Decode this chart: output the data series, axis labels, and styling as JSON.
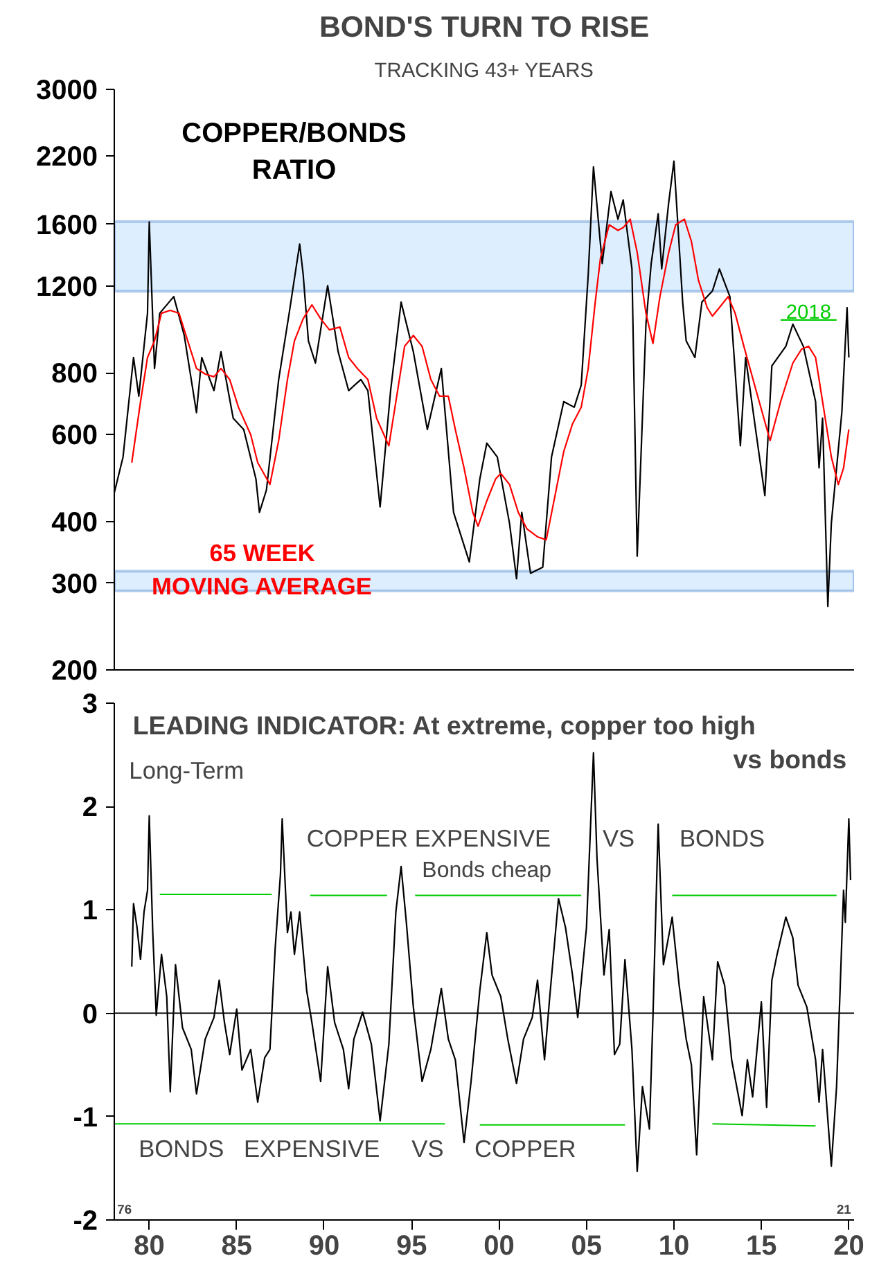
{
  "chart_data": [
    {
      "type": "line",
      "title": "BOND'S TURN TO RISE",
      "subtitle": "TRACKING 43+ YEARS",
      "log": "y",
      "tick_labels": "y",
      "xlim": [
        1978,
        2020.3
      ],
      "ylim": [
        200,
        3000
      ],
      "yticks": [
        200,
        300,
        400,
        600,
        800,
        1200,
        1600,
        2200,
        3000
      ],
      "bands": [
        {
          "axis": "y",
          "from": 1170,
          "to": 1620,
          "color": "#ddeeff"
        },
        {
          "axis": "y",
          "from": 289,
          "to": 317,
          "color": "#ddeeff"
        }
      ],
      "series": [
        {
          "name": "COPPER/BONDS\nRATIO",
          "color": "#000000",
          "x": [
            1978.0,
            1978.5,
            1979.1,
            1979.4,
            1979.9,
            1980.0,
            1980.3,
            1980.6,
            1981.4,
            1982.0,
            1982.7,
            1983.0,
            1983.7,
            1984.1,
            1984.8,
            1985.4,
            1986.1,
            1986.3,
            1986.7,
            1987.4,
            1988.0,
            1988.6,
            1988.8,
            1989.1,
            1989.5,
            1990.2,
            1990.8,
            1991.4,
            1992.1,
            1992.5,
            1993.2,
            1993.8,
            1994.4,
            1995.1,
            1995.9,
            1996.7,
            1997.4,
            1998.3,
            1998.9,
            1999.3,
            1999.9,
            2000.6,
            2001.0,
            2001.3,
            2001.8,
            2002.5,
            2003.0,
            2003.7,
            2004.3,
            2004.7,
            2005.1,
            2005.4,
            2005.9,
            2006.4,
            2006.8,
            2007.1,
            2007.6,
            2007.9,
            2008.4,
            2008.7,
            2009.1,
            2009.3,
            2009.7,
            2010.0,
            2010.5,
            2010.7,
            2011.2,
            2011.6,
            2012.2,
            2012.6,
            2013.2,
            2013.8,
            2014.1,
            2014.8,
            2015.2,
            2015.6,
            2016.4,
            2016.8,
            2017.4,
            2018.1,
            2018.3,
            2018.5,
            2018.8,
            2019.0,
            2019.6,
            2019.9,
            2020.0
          ],
          "values": [
            457,
            540,
            859,
            717,
            1056,
            1616,
            816,
            1056,
            1141,
            952,
            664,
            859,
            736,
            882,
            647,
            614,
            487,
            417,
            463,
            775,
            1056,
            1458,
            1265,
            928,
            837,
            1201,
            882,
            736,
            775,
            736,
            428,
            736,
            1112,
            882,
            614,
            816,
            417,
            331,
            487,
            576,
            540,
            396,
            306,
            417,
            314,
            323,
            540,
            699,
            681,
            755,
            1265,
            2090,
            1331,
            1862,
            1637,
            1791,
            1298,
            340,
            1003,
            1331,
            1679,
            1298,
            1768,
            2146,
            1112,
            928,
            859,
            1112,
            1171,
            1298,
            1141,
            569,
            859,
            569,
            451,
            826,
            905,
            1003,
            905,
            699,
            513,
            647,
            269,
            396,
            664,
            1084,
            859
          ]
        },
        {
          "name": "65 WEEK\nMOVING AVERAGE",
          "color": "#ff0000",
          "x": [
            1979.0,
            1979.5,
            1979.9,
            1980.3,
            1980.7,
            1981.2,
            1981.7,
            1982.2,
            1982.7,
            1983.2,
            1983.7,
            1984.1,
            1984.6,
            1985.1,
            1985.8,
            1986.2,
            1986.9,
            1987.4,
            1987.9,
            1988.3,
            1988.8,
            1989.3,
            1989.8,
            1990.3,
            1990.9,
            1991.4,
            1991.9,
            1992.5,
            1993.0,
            1993.7,
            1994.2,
            1994.6,
            1995.1,
            1995.6,
            1996.1,
            1996.6,
            1997.1,
            1997.5,
            1998.0,
            1998.5,
            1998.8,
            1999.3,
            1999.8,
            2000.1,
            2000.6,
            2001.1,
            2001.6,
            2002.2,
            2002.7,
            2003.2,
            2003.7,
            2004.2,
            2004.7,
            2005.1,
            2005.5,
            2005.8,
            2006.3,
            2006.8,
            2007.1,
            2007.5,
            2007.9,
            2008.4,
            2008.8,
            2009.2,
            2009.7,
            2010.1,
            2010.6,
            2011.0,
            2011.4,
            2011.9,
            2012.2,
            2012.6,
            2013.1,
            2013.5,
            2014.0,
            2014.7,
            2015.5,
            2016.1,
            2016.8,
            2017.3,
            2017.7,
            2018.1,
            2018.5,
            2019.0,
            2019.4,
            2019.7,
            2020.0
          ],
          "values": [
            526,
            699,
            859,
            928,
            1056,
            1070,
            1056,
            928,
            816,
            795,
            785,
            816,
            775,
            681,
            599,
            526,
            475,
            583,
            775,
            928,
            1029,
            1098,
            1029,
            977,
            990,
            859,
            816,
            775,
            647,
            569,
            736,
            905,
            952,
            905,
            775,
            717,
            717,
            614,
            513,
            417,
            391,
            440,
            487,
            500,
            475,
            417,
            386,
            372,
            367,
            451,
            554,
            630,
            681,
            816,
            1112,
            1366,
            1595,
            1554,
            1574,
            1637,
            1402,
            1056,
            917,
            1141,
            1402,
            1595,
            1637,
            1476,
            1232,
            1084,
            1042,
            1084,
            1141,
            1056,
            905,
            736,
            583,
            699,
            837,
            893,
            905,
            859,
            699,
            540,
            475,
            513,
            614
          ]
        },
        {
          "name": "2018",
          "color": "#00cc00",
          "x": [
            2016.1,
            2019.3
          ],
          "values": [
            1023,
            1023
          ]
        }
      ]
    },
    {
      "type": "line",
      "title": "LEADING INDICATOR: At extreme, copper too high\nvs bonds",
      "xlim": [
        1978,
        2020.3
      ],
      "ylim": [
        -2,
        3
      ],
      "yticks": [
        -2,
        -1,
        0,
        1,
        2,
        3
      ],
      "xticks": [
        {
          "value": 1980,
          "label": "80"
        },
        {
          "value": 1985,
          "label": "85"
        },
        {
          "value": 1990,
          "label": "90"
        },
        {
          "value": 1995,
          "label": "95"
        },
        {
          "value": 2000,
          "label": "00"
        },
        {
          "value": 2005,
          "label": "05"
        },
        {
          "value": 2010,
          "label": "10"
        },
        {
          "value": 2015,
          "label": "15"
        },
        {
          "value": 2020,
          "label": "20"
        }
      ],
      "ref_lines": [
        {
          "axis": "y",
          "value": 0,
          "color": "#000000"
        }
      ],
      "annotations": [
        "Long-Term",
        "COPPER EXPENSIVE",
        "VS",
        "BONDS",
        "Bonds cheap",
        "BONDS",
        "EXPENSIVE",
        "VS",
        "COPPER",
        "76",
        "21"
      ],
      "series": [
        {
          "color": "#000000",
          "x": [
            1979.0,
            1979.1,
            1979.3,
            1979.5,
            1979.7,
            1979.9,
            1980.0,
            1980.2,
            1980.4,
            1980.7,
            1981.0,
            1981.2,
            1981.5,
            1981.9,
            1982.4,
            1982.7,
            1983.2,
            1983.7,
            1984.0,
            1984.3,
            1984.6,
            1985.0,
            1985.3,
            1985.8,
            1986.2,
            1986.6,
            1986.9,
            1987.2,
            1987.5,
            1987.6,
            1987.9,
            1988.1,
            1988.3,
            1988.6,
            1989.0,
            1989.3,
            1989.8,
            1990.2,
            1990.6,
            1991.1,
            1991.4,
            1991.7,
            1992.2,
            1992.7,
            1993.2,
            1993.7,
            1994.1,
            1994.4,
            1994.7,
            1995.1,
            1995.6,
            1996.1,
            1996.7,
            1997.1,
            1997.5,
            1998.0,
            1998.4,
            1998.9,
            1999.3,
            1999.6,
            2000.1,
            2000.5,
            2001.0,
            2001.4,
            2001.9,
            2002.2,
            2002.6,
            2002.9,
            2003.4,
            2003.8,
            2004.2,
            2004.5,
            2005.0,
            2005.4,
            2005.6,
            2006.0,
            2006.3,
            2006.6,
            2006.9,
            2007.2,
            2007.6,
            2007.9,
            2008.2,
            2008.6,
            2008.8,
            2009.1,
            2009.4,
            2009.9,
            2010.3,
            2010.7,
            2011.0,
            2011.3,
            2011.7,
            2012.2,
            2012.5,
            2012.9,
            2013.3,
            2013.9,
            2014.2,
            2014.5,
            2015.0,
            2015.3,
            2015.6,
            2015.9,
            2016.4,
            2016.8,
            2017.1,
            2017.6,
            2018.1,
            2018.3,
            2018.5,
            2019.0,
            2019.3,
            2019.5,
            2019.7,
            2019.8,
            2020.0,
            2020.1
          ],
          "values": [
            0.45,
            1.06,
            0.83,
            0.52,
            0.98,
            1.19,
            1.91,
            0.78,
            -0.02,
            0.57,
            0.16,
            -0.76,
            0.47,
            -0.14,
            -0.35,
            -0.78,
            -0.25,
            -0.04,
            0.32,
            -0.09,
            -0.4,
            0.04,
            -0.55,
            -0.35,
            -0.86,
            -0.43,
            -0.35,
            0.63,
            1.34,
            1.88,
            0.78,
            0.98,
            0.57,
            0.98,
            0.22,
            -0.09,
            -0.66,
            0.45,
            -0.09,
            -0.35,
            -0.73,
            -0.25,
            0.01,
            -0.3,
            -1.04,
            -0.3,
            0.98,
            1.42,
            0.88,
            0.06,
            -0.66,
            -0.35,
            0.24,
            -0.25,
            -0.45,
            -1.25,
            -0.66,
            0.22,
            0.78,
            0.37,
            0.16,
            -0.25,
            -0.68,
            -0.25,
            -0.04,
            0.32,
            -0.45,
            0.16,
            1.11,
            0.83,
            0.37,
            -0.04,
            0.83,
            2.52,
            1.5,
            0.37,
            0.81,
            -0.4,
            -0.3,
            0.52,
            -0.35,
            -1.53,
            -0.71,
            -1.12,
            -0.04,
            1.83,
            0.47,
            0.93,
            0.27,
            -0.25,
            -0.5,
            -1.37,
            0.16,
            -0.45,
            0.5,
            0.27,
            -0.45,
            -0.99,
            -0.45,
            -0.81,
            0.11,
            -0.91,
            0.32,
            0.57,
            0.93,
            0.73,
            0.27,
            0.06,
            -0.45,
            -0.86,
            -0.35,
            -1.48,
            -0.71,
            0.22,
            1.19,
            0.88,
            1.88,
            1.29
          ]
        },
        {
          "color": "#00cc00",
          "x": [
            1980.6,
            1987.0
          ],
          "values": [
            1.15,
            1.15
          ]
        },
        {
          "color": "#00cc00",
          "x": [
            1989.2,
            1993.6
          ],
          "values": [
            1.14,
            1.14
          ]
        },
        {
          "color": "#00cc00",
          "x": [
            1995.2,
            2004.7
          ],
          "values": [
            1.14,
            1.14
          ]
        },
        {
          "color": "#00cc00",
          "x": [
            2009.9,
            2019.3
          ],
          "values": [
            1.14,
            1.14
          ]
        },
        {
          "color": "#00cc00",
          "x": [
            1978.0,
            1996.9
          ],
          "values": [
            -1.07,
            -1.07
          ]
        },
        {
          "color": "#00cc00",
          "x": [
            1998.9,
            2007.2
          ],
          "values": [
            -1.08,
            -1.08
          ]
        },
        {
          "color": "#00cc00",
          "x": [
            2012.2,
            2018.1
          ],
          "values": [
            -1.07,
            -1.09
          ]
        }
      ]
    }
  ]
}
